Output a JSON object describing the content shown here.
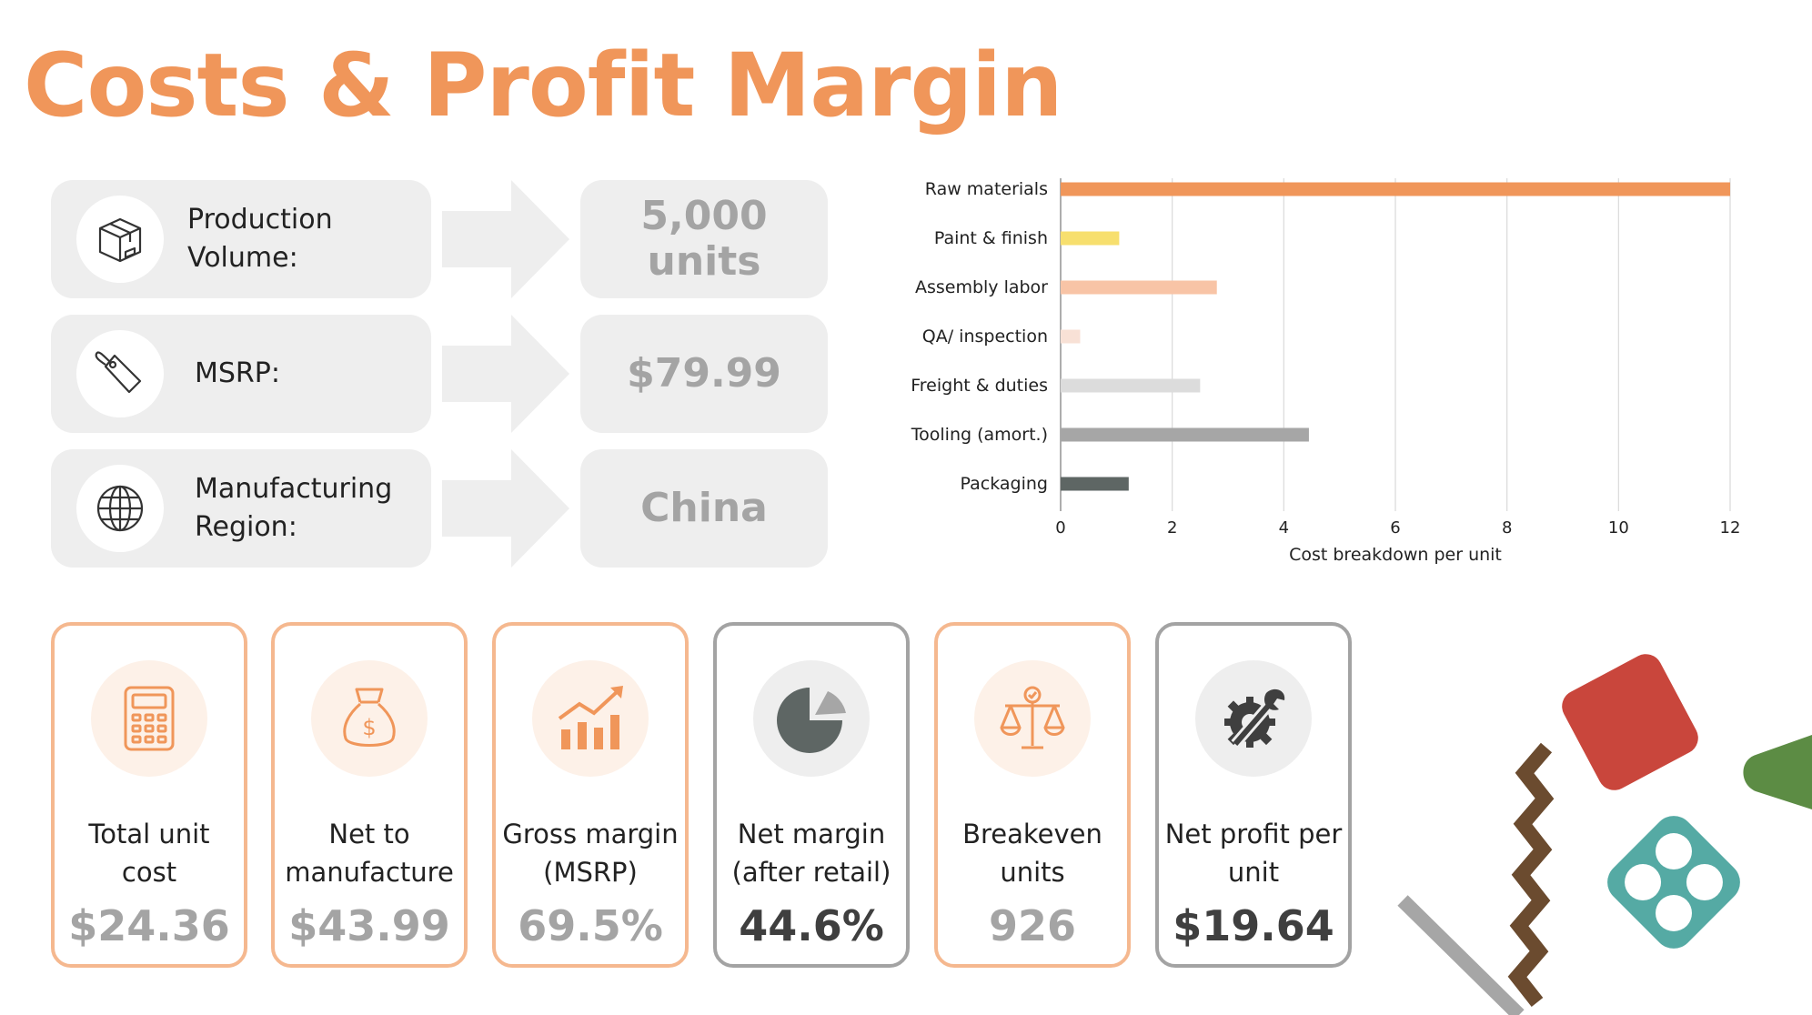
{
  "slide": {
    "title": "Costs & Profit Margin"
  },
  "info_rows": [
    {
      "label": "Production Volume:",
      "value": "5,000 units",
      "icon": "box-icon"
    },
    {
      "label": "MSRP:",
      "value": "$79.99",
      "icon": "price-tag-icon"
    },
    {
      "label": "Manufacturing Region:",
      "value": "China",
      "icon": "globe-icon"
    }
  ],
  "chart_data": {
    "type": "bar",
    "orientation": "horizontal",
    "categories": [
      "Raw materials",
      "Paint & finish",
      "Assembly labor",
      "QA/ inspection",
      "Freight & duties",
      "Tooling (amort.)",
      "Packaging"
    ],
    "values": [
      12.0,
      1.05,
      2.8,
      0.35,
      2.5,
      4.45,
      1.22
    ],
    "colors": [
      "#f0965a",
      "#f7df6e",
      "#f8c4a6",
      "#f8e1d6",
      "#dcdcdc",
      "#a6a6a6",
      "#5e6664"
    ],
    "xlabel": "Cost breakdown per unit",
    "ylabel": "",
    "xlim": [
      0,
      12
    ],
    "xticks": [
      0,
      2,
      4,
      6,
      8,
      10,
      12
    ],
    "grid": true
  },
  "metrics": [
    {
      "label": "Total unit cost",
      "value": "$24.36",
      "icon": "calculator-icon"
    },
    {
      "label": "Net to manufacture",
      "value": "$43.99",
      "icon": "money-bag-icon"
    },
    {
      "label": "Gross margin (MSRP)",
      "value": "69.5%",
      "icon": "growth-chart-icon"
    },
    {
      "label": "Net margin (after retail)",
      "value": "44.6%",
      "icon": "pie-chart-icon"
    },
    {
      "label": "Breakeven units",
      "value": "926",
      "icon": "balance-scale-icon"
    },
    {
      "label": "Net profit per unit",
      "value": "$19.64",
      "icon": "gear-wrench-icon"
    }
  ],
  "colors": {
    "accent": "#f0965a",
    "card_border_orange": "#f5b88f",
    "card_border_gray": "#a3a3a3",
    "panel_gray": "#eeeeee"
  }
}
